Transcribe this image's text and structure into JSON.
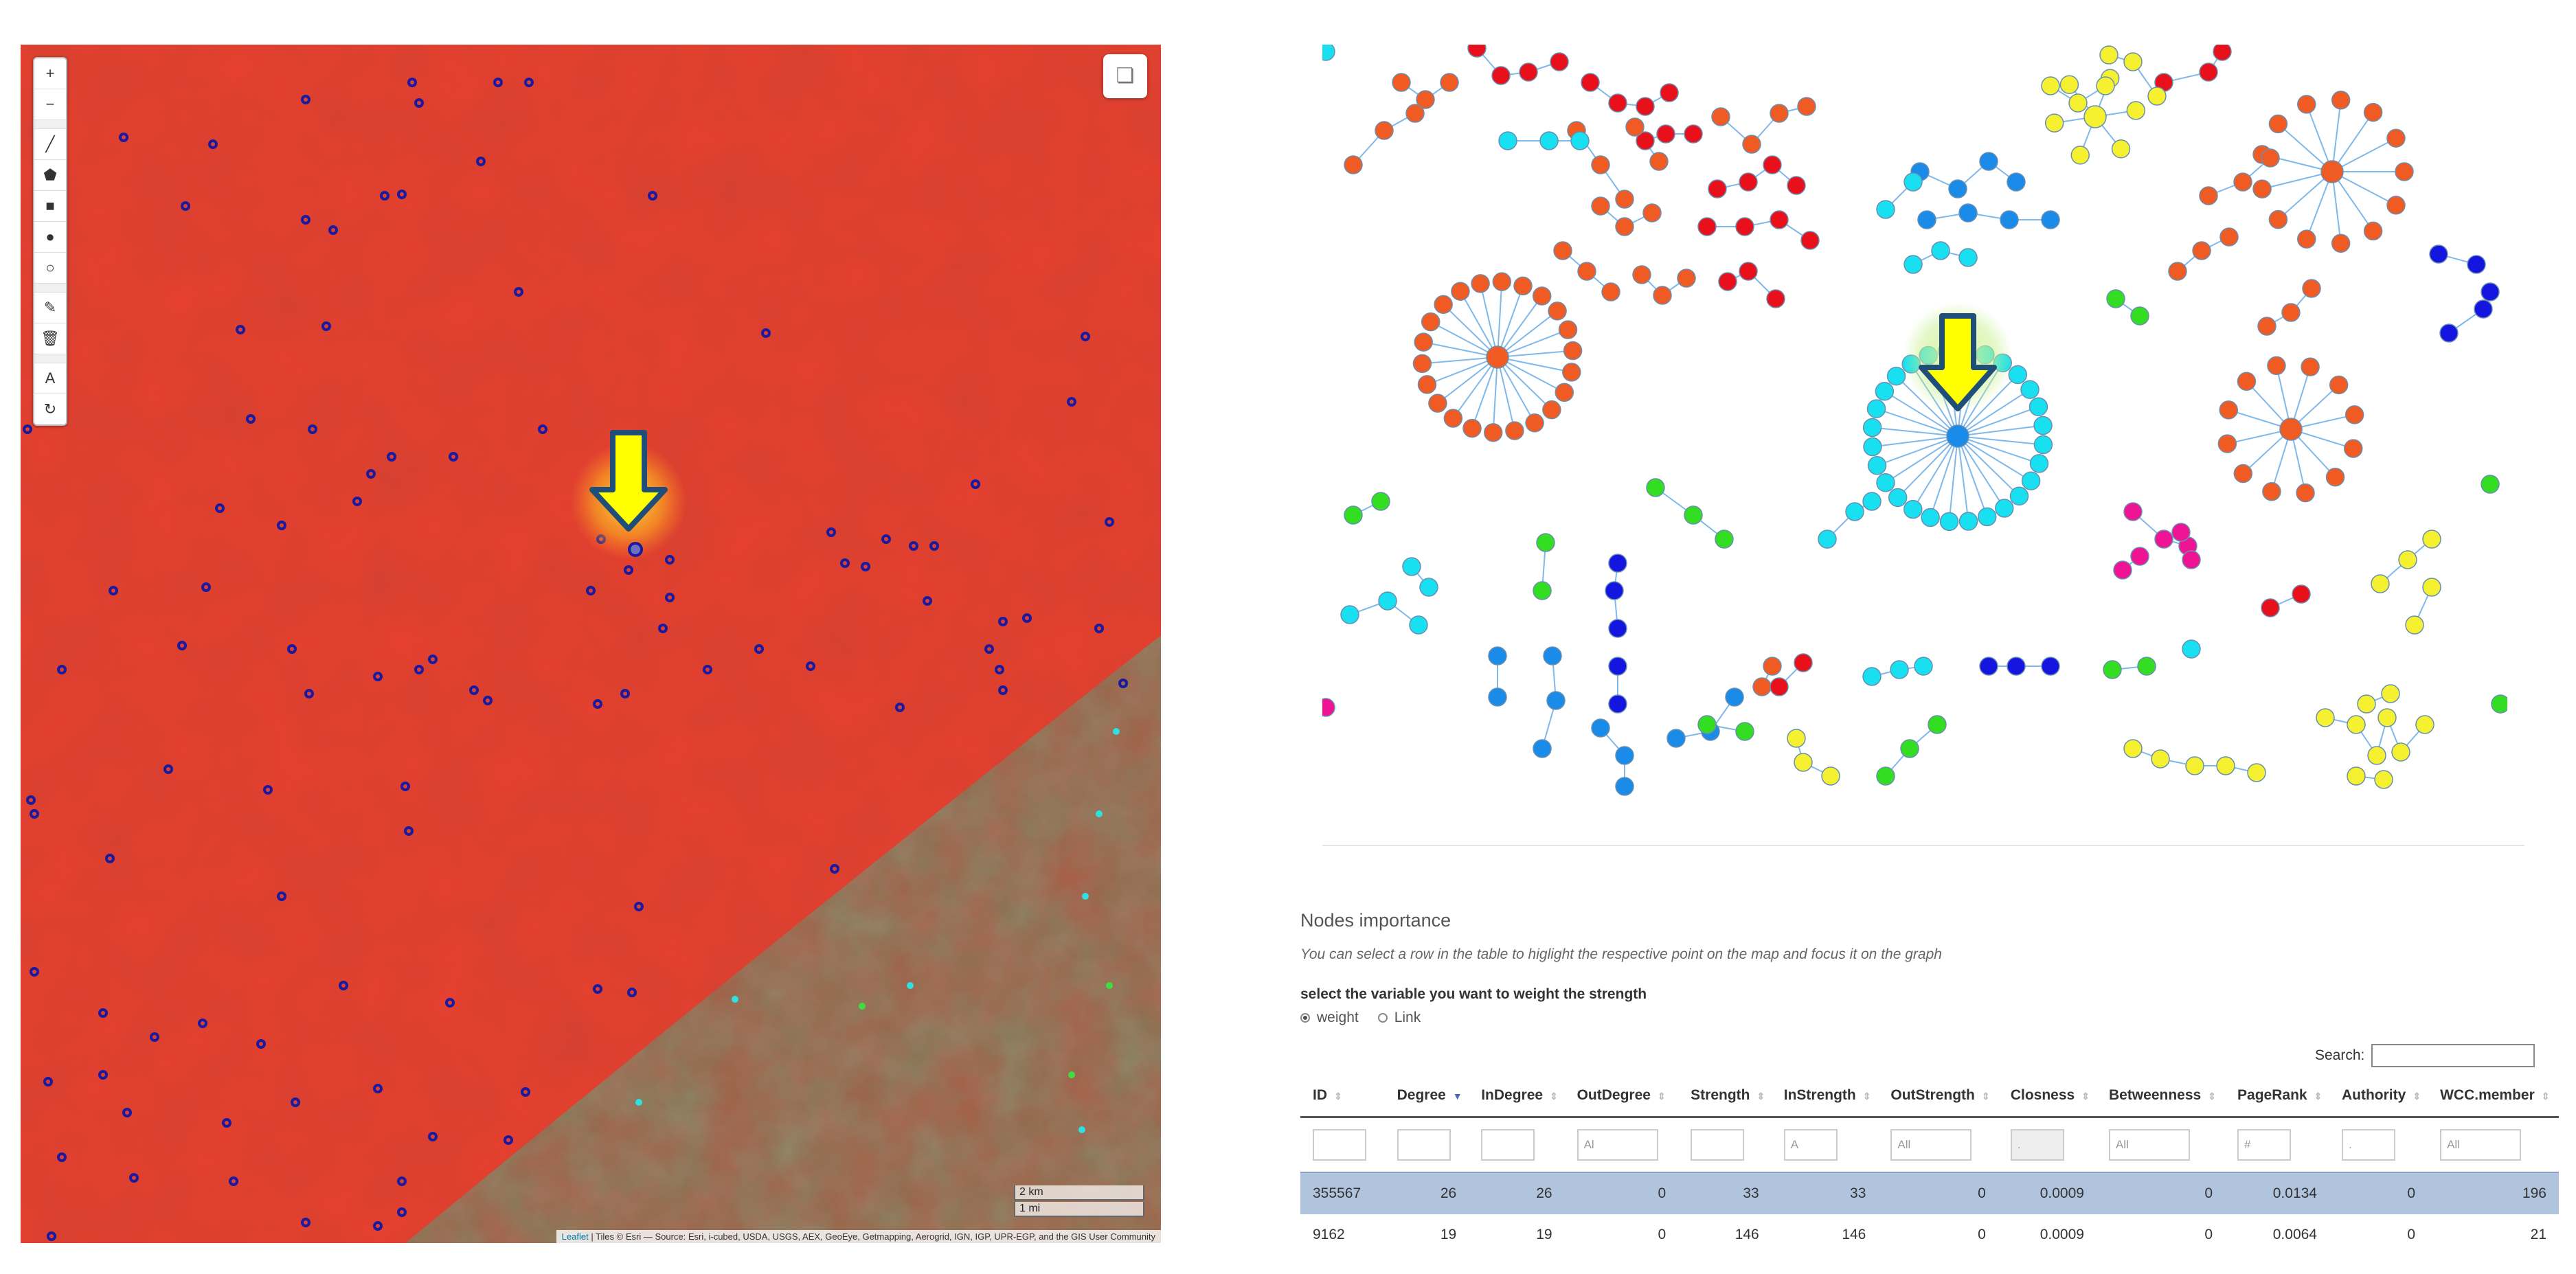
{
  "map": {
    "toolbar": [
      {
        "name": "zoom-in-icon",
        "glyph": "+"
      },
      {
        "name": "zoom-out-icon",
        "glyph": "−"
      },
      {
        "sep": true
      },
      {
        "name": "draw-line-icon",
        "glyph": "╱"
      },
      {
        "name": "draw-polygon-icon",
        "glyph": "⬟"
      },
      {
        "name": "draw-rectangle-icon",
        "glyph": "■"
      },
      {
        "name": "draw-circle-icon",
        "glyph": "●"
      },
      {
        "name": "draw-circlemarker-icon",
        "glyph": "○"
      },
      {
        "sep": true
      },
      {
        "name": "edit-layers-icon",
        "glyph": "✎"
      },
      {
        "name": "delete-layers-icon",
        "glyph": "🗑"
      },
      {
        "sep": true
      },
      {
        "name": "text-tool-icon",
        "glyph": "A"
      },
      {
        "name": "rotate-icon",
        "glyph": "↻"
      }
    ],
    "layers_icon": "layers-icon",
    "scale_km": "2 km",
    "scale_mi": "1 mi",
    "attribution_leaflet": "Leaflet",
    "attribution_rest": " | Tiles © Esri — Source: Esri, i-cubed, USDA, USGS, AEX, GeoEye, Getmapping, Aerogrid, IGN, IGP, UPR-EGP, and the GIS User Community"
  },
  "table_section": {
    "title": "Nodes importance",
    "description": "You can select a row in the table to higlight the respective point on the map and focus it on the graph",
    "variable_label": "select the variable you want to weight the strength",
    "options": [
      {
        "label": "weight",
        "checked": true
      },
      {
        "label": "Link",
        "checked": false
      }
    ],
    "search_label": "Search:"
  },
  "table": {
    "columns": [
      "ID",
      "Degree",
      "InDegree",
      "OutDegree",
      "Strength",
      "InStrength",
      "OutStrength",
      "Closness",
      "Betweenness",
      "PageRank",
      "Authority",
      "WCC.member"
    ],
    "sorted_column": "Degree",
    "filters": [
      "",
      "",
      "",
      "Al",
      "",
      "A",
      "All",
      ".",
      "All",
      "#",
      ".",
      "All"
    ],
    "rows": [
      {
        "selected": true,
        "cells": [
          "355567",
          "26",
          "26",
          "0",
          "33",
          "33",
          "0",
          "0.0009",
          "0",
          "0.0134",
          "0",
          "196"
        ]
      },
      {
        "selected": false,
        "cells": [
          "9162",
          "19",
          "19",
          "0",
          "146",
          "146",
          "0",
          "0.0009",
          "0",
          "0.0064",
          "0",
          "21"
        ]
      }
    ]
  },
  "colors": {
    "map_red": "#d63a2c",
    "arrow_fill": "#ffff00",
    "arrow_stroke": "#1f4e79",
    "selected_row": "#b0c4de",
    "node_red": "#e8101a",
    "node_orange": "#f05a23",
    "node_yellow": "#f5f030",
    "node_green": "#33dd22",
    "node_cyan": "#18e0f0",
    "node_blue": "#1a8be8",
    "node_darkblue": "#1515e0",
    "node_magenta": "#ee1493"
  }
}
